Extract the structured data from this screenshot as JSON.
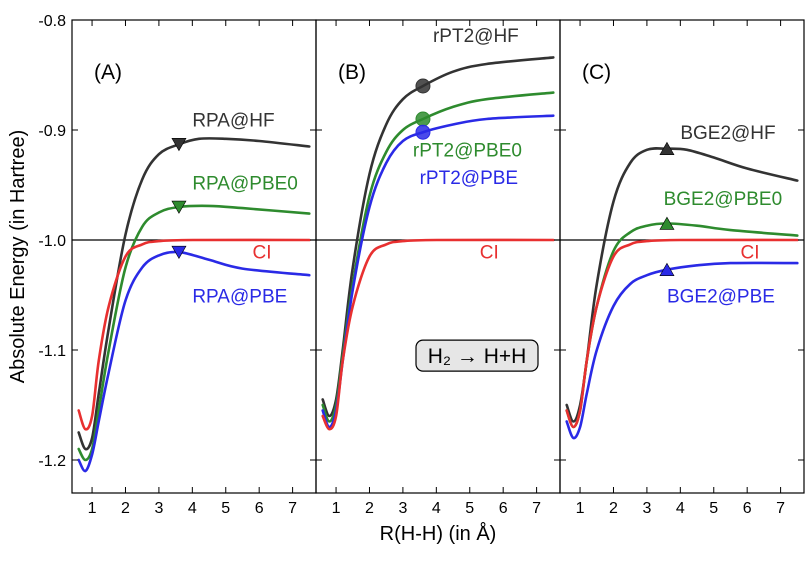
{
  "chart_data": {
    "type": "line",
    "ylabel": "Absolute Energy (in Hartree)",
    "xlabel": "R(H-H) (in Å)",
    "ylim": [
      -1.23,
      -0.8
    ],
    "xlim": [
      0.4,
      7.7
    ],
    "yticks": [
      -0.8,
      -0.9,
      -1.0,
      -1.1,
      -1.2
    ],
    "ytick_labels": [
      "-0.8",
      "-0.9",
      "-1.0",
      "-1.1",
      "-1.2"
    ],
    "xticks": [
      1,
      2,
      3,
      4,
      5,
      6,
      7
    ],
    "xtick_labels": [
      "1",
      "2",
      "3",
      "4",
      "5",
      "6",
      "7"
    ],
    "reference_line": -1.0,
    "annotation": "H₂ → H+H",
    "colors": {
      "HF": "#333333",
      "PBE0": "#2e8b2e",
      "PBE": "#2a2ae6",
      "CI": "#e83030"
    },
    "panels": [
      {
        "label": "(A)",
        "marker": "triangle-down",
        "series": [
          {
            "name": "RPA@HF",
            "color_key": "HF",
            "x": [
              0.6,
              0.8,
              1.0,
              1.2,
              1.5,
              2.0,
              2.5,
              3.0,
              3.6,
              4.2,
              5.0,
              6.0,
              7.5
            ],
            "values": [
              -1.175,
              -1.19,
              -1.18,
              -1.14,
              -1.08,
              -0.995,
              -0.945,
              -0.922,
              -0.913,
              -0.908,
              -0.908,
              -0.91,
              -0.915
            ]
          },
          {
            "name": "RPA@PBE0",
            "color_key": "PBE0",
            "x": [
              0.6,
              0.8,
              1.0,
              1.2,
              1.5,
              2.0,
              2.5,
              3.0,
              3.6,
              4.5,
              5.5,
              7.5
            ],
            "values": [
              -1.19,
              -1.2,
              -1.19,
              -1.155,
              -1.1,
              -1.025,
              -0.988,
              -0.975,
              -0.97,
              -0.969,
              -0.971,
              -0.976
            ]
          },
          {
            "name": "RPA@PBE",
            "color_key": "PBE",
            "x": [
              0.6,
              0.8,
              1.0,
              1.2,
              1.5,
              2.0,
              2.5,
              3.0,
              3.6,
              4.5,
              5.5,
              7.5
            ],
            "values": [
              -1.2,
              -1.21,
              -1.195,
              -1.165,
              -1.12,
              -1.055,
              -1.025,
              -1.014,
              -1.011,
              -1.018,
              -1.026,
              -1.032
            ]
          },
          {
            "name": "CI",
            "color_key": "CI",
            "x": [
              0.6,
              0.8,
              1.0,
              1.2,
              1.5,
              2.0,
              2.5,
              3.0,
              4.0,
              7.5
            ],
            "values": [
              -1.155,
              -1.172,
              -1.16,
              -1.11,
              -1.06,
              -1.015,
              -1.004,
              -1.001,
              -1.0,
              -1.0
            ]
          }
        ],
        "markers": [
          {
            "series": "RPA@HF",
            "x": 3.6,
            "y": -0.913
          },
          {
            "series": "RPA@PBE0",
            "x": 3.6,
            "y": -0.97
          },
          {
            "series": "RPA@PBE",
            "x": 3.6,
            "y": -1.011
          }
        ],
        "labels": [
          {
            "text": "RPA@HF",
            "color_key": "HF",
            "x": 4.0,
            "y": -0.897
          },
          {
            "text": "RPA@PBE0",
            "color_key": "PBE0",
            "x": 4.0,
            "y": -0.954
          },
          {
            "text": "CI",
            "color_key": "CI",
            "x": 5.8,
            "y": -1.017
          },
          {
            "text": "RPA@PBE",
            "color_key": "PBE",
            "x": 4.0,
            "y": -1.057
          }
        ]
      },
      {
        "label": "(B)",
        "marker": "circle",
        "series": [
          {
            "name": "rPT2@HF",
            "color_key": "HF",
            "x": [
              0.6,
              0.8,
              1.0,
              1.2,
              1.5,
              2.0,
              2.5,
              3.0,
              3.6,
              4.5,
              5.5,
              7.5
            ],
            "values": [
              -1.145,
              -1.16,
              -1.145,
              -1.1,
              -1.025,
              -0.94,
              -0.895,
              -0.872,
              -0.86,
              -0.847,
              -0.84,
              -0.834
            ]
          },
          {
            "name": "rPT2@PBE0",
            "color_key": "PBE0",
            "x": [
              0.6,
              0.8,
              1.0,
              1.2,
              1.5,
              2.0,
              2.5,
              3.0,
              3.6,
              4.5,
              5.5,
              7.5
            ],
            "values": [
              -1.15,
              -1.165,
              -1.15,
              -1.105,
              -1.04,
              -0.96,
              -0.92,
              -0.9,
              -0.89,
              -0.879,
              -0.872,
              -0.866
            ]
          },
          {
            "name": "rPT2@PBE",
            "color_key": "PBE",
            "x": [
              0.6,
              0.8,
              1.0,
              1.2,
              1.5,
              2.0,
              2.5,
              3.0,
              3.6,
              4.5,
              5.5,
              7.5
            ],
            "values": [
              -1.155,
              -1.17,
              -1.155,
              -1.11,
              -1.045,
              -0.97,
              -0.93,
              -0.91,
              -0.902,
              -0.895,
              -0.89,
              -0.887
            ]
          },
          {
            "name": "CI",
            "color_key": "CI",
            "x": [
              0.6,
              0.8,
              1.0,
              1.2,
              1.5,
              2.0,
              2.5,
              3.0,
              4.0,
              7.5
            ],
            "values": [
              -1.16,
              -1.172,
              -1.16,
              -1.11,
              -1.06,
              -1.015,
              -1.004,
              -1.001,
              -1.0,
              -1.0
            ]
          }
        ],
        "markers": [
          {
            "series": "rPT2@HF",
            "x": 3.6,
            "y": -0.86
          },
          {
            "series": "rPT2@PBE0",
            "x": 3.6,
            "y": -0.89
          },
          {
            "series": "rPT2@PBE",
            "x": 3.6,
            "y": -0.902
          }
        ],
        "labels": [
          {
            "text": "rPT2@HF",
            "color_key": "HF",
            "x": 3.9,
            "y": -0.82
          },
          {
            "text": "rPT2@PBE0",
            "color_key": "PBE0",
            "x": 3.3,
            "y": -0.924
          },
          {
            "text": "rPT2@PBE",
            "color_key": "PBE",
            "x": 3.5,
            "y": -0.949
          },
          {
            "text": "CI",
            "color_key": "CI",
            "x": 5.3,
            "y": -1.017
          }
        ]
      },
      {
        "label": "(C)",
        "marker": "triangle-up",
        "series": [
          {
            "name": "BGE2@HF",
            "color_key": "HF",
            "x": [
              0.6,
              0.8,
              1.0,
              1.2,
              1.5,
              2.0,
              2.5,
              3.0,
              3.6,
              4.2,
              5.0,
              6.0,
              7.5
            ],
            "values": [
              -1.15,
              -1.165,
              -1.15,
              -1.11,
              -1.04,
              -0.965,
              -0.93,
              -0.918,
              -0.917,
              -0.918,
              -0.925,
              -0.935,
              -0.946
            ]
          },
          {
            "name": "BGE2@PBE0",
            "color_key": "PBE0",
            "x": [
              0.6,
              0.8,
              1.0,
              1.2,
              1.5,
              2.0,
              2.5,
              3.0,
              3.6,
              4.5,
              5.5,
              7.5
            ],
            "values": [
              -1.155,
              -1.17,
              -1.155,
              -1.11,
              -1.06,
              -1.01,
              -0.993,
              -0.987,
              -0.985,
              -0.987,
              -0.991,
              -0.996
            ]
          },
          {
            "name": "BGE2@PBE",
            "color_key": "PBE",
            "x": [
              0.6,
              0.8,
              1.0,
              1.2,
              1.5,
              2.0,
              2.5,
              3.0,
              3.6,
              4.5,
              5.5,
              7.5
            ],
            "values": [
              -1.165,
              -1.18,
              -1.17,
              -1.14,
              -1.1,
              -1.06,
              -1.04,
              -1.032,
              -1.027,
              -1.023,
              -1.021,
              -1.021
            ]
          },
          {
            "name": "CI",
            "color_key": "CI",
            "x": [
              0.6,
              0.8,
              1.0,
              1.2,
              1.5,
              2.0,
              2.5,
              3.0,
              4.0,
              7.5
            ],
            "values": [
              -1.155,
              -1.17,
              -1.155,
              -1.11,
              -1.06,
              -1.015,
              -1.004,
              -1.001,
              -1.0,
              -1.0
            ]
          }
        ],
        "markers": [
          {
            "series": "BGE2@HF",
            "x": 3.6,
            "y": -0.917
          },
          {
            "series": "BGE2@PBE0",
            "x": 3.6,
            "y": -0.985
          },
          {
            "series": "BGE2@PBE",
            "x": 3.6,
            "y": -1.027
          }
        ],
        "labels": [
          {
            "text": "BGE2@HF",
            "color_key": "HF",
            "x": 4.0,
            "y": -0.908
          },
          {
            "text": "BGE2@PBE0",
            "color_key": "PBE0",
            "x": 3.5,
            "y": -0.968
          },
          {
            "text": "CI",
            "color_key": "CI",
            "x": 5.8,
            "y": -1.017
          },
          {
            "text": "BGE2@PBE",
            "color_key": "PBE",
            "x": 3.6,
            "y": -1.057
          }
        ]
      }
    ]
  }
}
